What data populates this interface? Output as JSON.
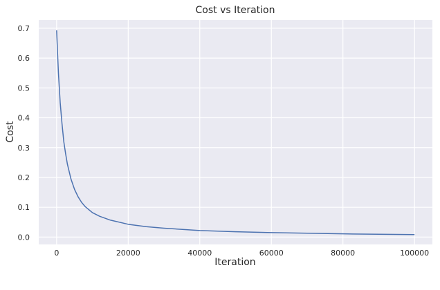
{
  "chart_data": {
    "type": "line",
    "title": "Cost vs Iteration",
    "xlabel": "Iteration",
    "ylabel": "Cost",
    "xlim": [
      -5000,
      105000
    ],
    "ylim": [
      -0.0245,
      0.7275
    ],
    "x_ticks": [
      0,
      20000,
      40000,
      60000,
      80000,
      100000
    ],
    "x_tick_labels": [
      "0",
      "20000",
      "40000",
      "60000",
      "80000",
      "100000"
    ],
    "y_ticks": [
      0.0,
      0.1,
      0.2,
      0.3,
      0.4,
      0.5,
      0.6,
      0.7
    ],
    "y_tick_labels": [
      "0.0",
      "0.1",
      "0.2",
      "0.3",
      "0.4",
      "0.5",
      "0.6",
      "0.7"
    ],
    "grid": true,
    "background_color": "#eaeaf2",
    "grid_color": "#ffffff",
    "series": [
      {
        "color": "#4c72b0",
        "x": [
          0,
          250,
          500,
          1000,
          1500,
          2000,
          2500,
          3000,
          4000,
          5000,
          6000,
          7000,
          8000,
          10000,
          12000,
          15000,
          20000,
          25000,
          30000,
          40000,
          50000,
          60000,
          70000,
          80000,
          90000,
          100000
        ],
        "y": [
          0.693,
          0.62,
          0.55,
          0.45,
          0.38,
          0.32,
          0.28,
          0.245,
          0.195,
          0.16,
          0.135,
          0.116,
          0.102,
          0.082,
          0.07,
          0.057,
          0.043,
          0.035,
          0.03,
          0.022,
          0.018,
          0.015,
          0.013,
          0.011,
          0.0095,
          0.0085
        ]
      }
    ]
  }
}
